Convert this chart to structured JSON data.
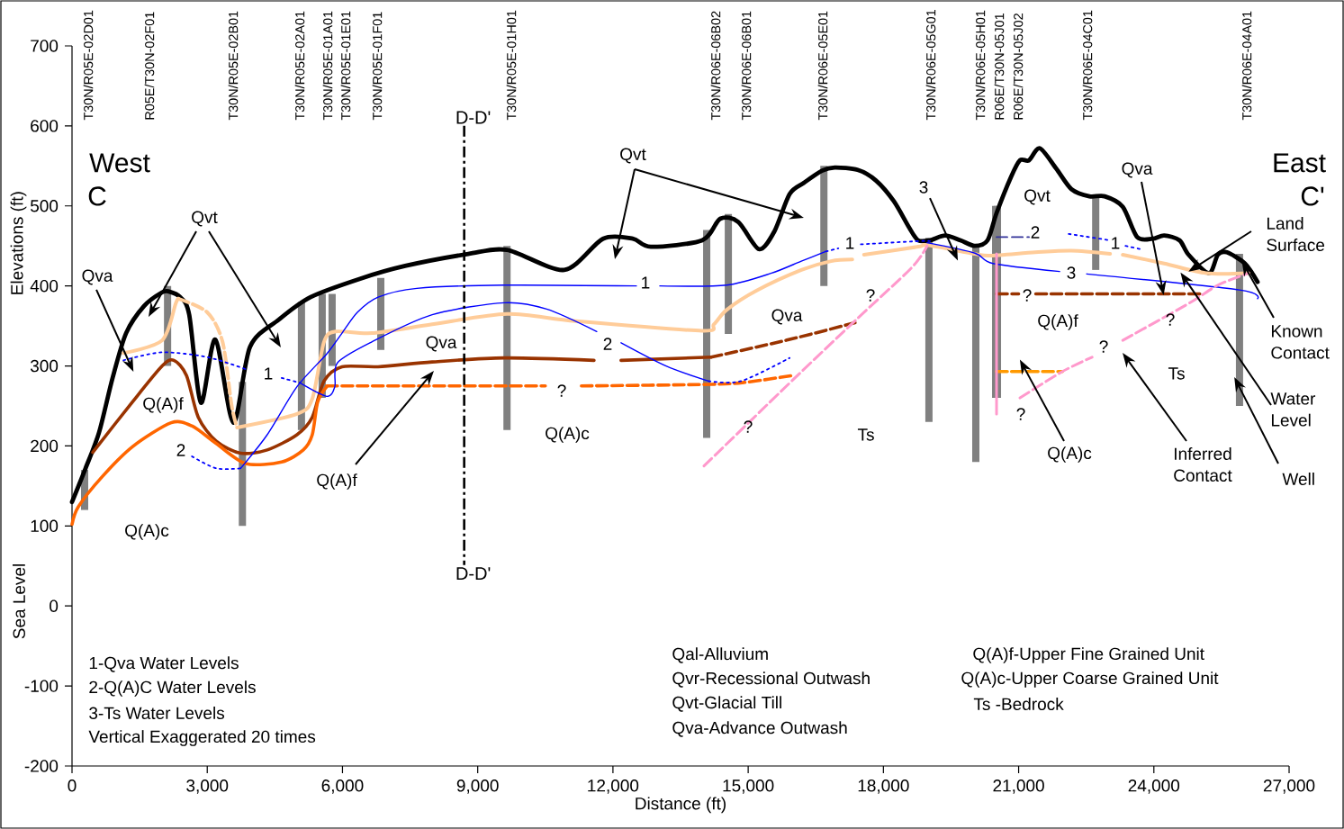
{
  "chart_data": {
    "type": "line",
    "xlabel": "Distance (ft)",
    "ylabel": "Elevations (ft)",
    "xlim": [
      0,
      27000
    ],
    "ylim": [
      -200,
      700
    ],
    "xticks": [
      0,
      {
        "value": 3000,
        "label": "3,000"
      },
      {
        "value": 6000,
        "label": "6,000"
      },
      {
        "value": 9000,
        "label": "9,000"
      },
      {
        "value": 12000,
        "label": "12,000"
      },
      {
        "value": 15000,
        "label": "15,000"
      },
      {
        "value": 18000,
        "label": "18,000"
      },
      {
        "value": 21000,
        "label": "21,000"
      },
      {
        "value": 24000,
        "label": "24,000"
      },
      {
        "value": 27000,
        "label": "27,000"
      }
    ],
    "yticks": [
      -200,
      -100,
      0,
      100,
      200,
      300,
      400,
      500,
      600,
      700
    ],
    "series": [
      {
        "color": "#000000",
        "line_style": "solid",
        "x": [
          0,
          300,
          600,
          900,
          1200,
          1600,
          2000,
          2150,
          2400,
          2600,
          2860,
          3180,
          3580,
          3950,
          4590,
          5290,
          6390,
          7390,
          8790,
          9650,
          10920,
          11780,
          12440,
          12840,
          13980,
          14380,
          14780,
          15240,
          15580,
          15920,
          16240,
          16640,
          16920,
          17430,
          17830,
          18230,
          18570,
          18770,
          19030,
          19370,
          19710,
          20030,
          20310,
          20510,
          20830,
          21030,
          21230,
          21470,
          21830,
          22170,
          22570,
          22910,
          23310,
          23630,
          23970,
          24230,
          24570,
          24770,
          25220,
          25420,
          25620,
          26020,
          26300
        ],
        "values": [
          130,
          172,
          217,
          285,
          341,
          375,
          392,
          393,
          386,
          364,
          254,
          333,
          229,
          324,
          358,
          386,
          409,
          425,
          440,
          445,
          420,
          459,
          459,
          449,
          457,
          484,
          480,
          446,
          468,
          515,
          529,
          544,
          548,
          545,
          532,
          506,
          473,
          457,
          457,
          463,
          457,
          450,
          457,
          491,
          536,
          557,
          557,
          572,
          547,
          521,
          512,
          512,
          499,
          461,
          459,
          463,
          457,
          439,
          416,
          439,
          442,
          428,
          405
        ]
      },
      {
        "color": "#ffcc99",
        "line_style": "solid",
        "x": [
          3660,
          4990,
          5330,
          5590,
          5850,
          6650,
          7990,
          9650,
          11180,
          13980,
          14240,
          14520,
          15180,
          16180,
          16840,
          17310,
          17440,
          17570,
          18770,
          18970,
          20030,
          20370,
          21370,
          22170,
          23030,
          23170,
          23310,
          24230,
          25160,
          26100
        ],
        "values": [
          223,
          240,
          259,
          330,
          343,
          341,
          352,
          365,
          356,
          344,
          352,
          370,
          394,
          420,
          431,
          433,
          null,
          439,
          449,
          451,
          440,
          438,
          442,
          444,
          440,
          null,
          439,
          428,
          416,
          416
        ]
      },
      {
        "color": "#ffcc99",
        "line_style": "dashed",
        "x": [
          2360,
          3000,
          3340,
          3540,
          3660
        ],
        "values": [
          384,
          367,
          330,
          251,
          223
        ]
      },
      {
        "color": "#993300",
        "line_style": "solid",
        "x": [
          460,
          1340,
          2000,
          2260,
          2540,
          2800,
          3200,
          3740,
          4330,
          4990,
          5330,
          5590,
          5990,
          6790,
          7990,
          9590,
          11580,
          11880,
          12180,
          14180
        ],
        "values": [
          192,
          255,
          300,
          307,
          288,
          236,
          206,
          191,
          195,
          214,
          236,
          281,
          299,
          299,
          305,
          310,
          307,
          null,
          307,
          311
        ]
      },
      {
        "color": "#993300",
        "line_style": "dashed",
        "x": [
          14180,
          15840,
          17370,
          19000,
          20510,
          21000,
          21190,
          21380,
          25020
        ],
        "values": [
          311,
          332,
          354,
          null,
          390,
          390,
          null,
          390,
          390
        ]
      },
      {
        "color": "#ff6600",
        "line_style": "solid",
        "x": [
          0,
          140,
          660,
          1340,
          2200,
          2660,
          3200,
          3850,
          4650,
          5130,
          5330,
          5450,
          5650
        ],
        "values": [
          102,
          124,
          161,
          199,
          229,
          225,
          203,
          178,
          180,
          195,
          214,
          255,
          274
        ]
      },
      {
        "color": "#ff6600",
        "line_style": "dashed",
        "x": [
          5650,
          10500,
          10900,
          11300,
          14180,
          15000,
          15980
        ],
        "values": [
          275,
          275,
          null,
          275,
          277,
          280,
          288
        ]
      },
      {
        "color": "#ff9900",
        "line_style": "dashed",
        "x": [
          20510,
          21970
        ],
        "values": [
          293,
          293
        ]
      },
      {
        "color": "#0000ff",
        "line_style": "solid",
        "x": [
          3740,
          4330,
          4990,
          5650,
          5990,
          6330,
          6790,
          7650,
          9590,
          12520,
          12780,
          13040,
          14520,
          15520,
          16180,
          16720
        ],
        "values": [
          172,
          214,
          274,
          315,
          341,
          367,
          386,
          397,
          401,
          400,
          null,
          400,
          401,
          416,
          431,
          443
        ]
      },
      {
        "color": "#0000ff",
        "line_style": "dotted",
        "x": [
          16720,
          17000,
          17250,
          17500,
          18770,
          19030
        ],
        "values": [
          443,
          447,
          null,
          452,
          456,
          456
        ]
      },
      {
        "color": "#0000ff",
        "line_style": "solid",
        "x": [
          18970,
          20030,
          20430,
          21910,
          22170,
          22510,
          25900,
          26300
        ],
        "values": [
          454,
          441,
          428,
          418,
          null,
          415,
          395,
          384
        ]
      },
      {
        "color": "#0000ff",
        "line_style": "dotted",
        "x": [
          1140,
          2000,
          3000,
          3850,
          4350,
          4650,
          5050
        ],
        "values": [
          307,
          317,
          311,
          296,
          null,
          285,
          279
        ]
      },
      {
        "color": "#0000ff",
        "line_style": "dotted",
        "x": [
          2660,
          3200,
          3740
        ],
        "values": [
          187,
          172,
          172
        ]
      },
      {
        "color": "#0000ff",
        "line_style": "solid",
        "x": [
          5050,
          5650,
          5830,
          5890,
          6650,
          7990,
          9590,
          10530,
          11640,
          11880,
          12180,
          13180,
          14120
        ],
        "values": [
          279,
          262,
          274,
          304,
          330,
          364,
          379,
          371,
          343,
          null,
          329,
          300,
          281
        ]
      },
      {
        "color": "#0000ff",
        "line_style": "dotted",
        "x": [
          14120,
          14840,
          15920
        ],
        "values": [
          281,
          281,
          310
        ]
      },
      {
        "color": "#333399",
        "line_style": "dashed",
        "x": [
          20510,
          21230
        ],
        "values": [
          461,
          461
        ]
      },
      {
        "color": "#0000ff",
        "line_style": "dotted",
        "x": [
          22110,
          23030,
          23200,
          23370,
          23710
        ],
        "values": [
          465,
          457,
          null,
          450,
          446
        ]
      },
      {
        "color": "#ff99cc",
        "line_style": "dashed",
        "x": [
          14020,
          16000,
          17400,
          18630,
          18970
        ],
        "values": [
          175,
          283,
          358,
          423,
          450
        ]
      },
      {
        "color": "#ff99cc",
        "line_style": "solid",
        "x": [
          20510,
          20510
        ],
        "values": [
          440,
          240
        ]
      },
      {
        "color": "#ff99cc",
        "line_style": "dashed",
        "x": [
          21030,
          21970,
          22630,
          22950,
          23310,
          24770,
          25420,
          26100
        ],
        "values": [
          260,
          293,
          311,
          null,
          332,
          378,
          401,
          416
        ]
      },
      {
        "color": "#ffcc99",
        "line_style": "solid",
        "x": [
          1140,
          2000,
          2300,
          2360
        ],
        "values": [
          316,
          332,
          378,
          384
        ]
      },
      {
        "type": "bar",
        "color": "#808080",
        "x": [
          280,
          2120,
          3780,
          5090,
          5550,
          5770,
          6850,
          9650,
          14080,
          14560,
          16680,
          19010,
          20050,
          20490,
          20530,
          22710,
          25900
        ],
        "base": [
          120,
          300,
          100,
          220,
          260,
          300,
          320,
          220,
          210,
          340,
          400,
          230,
          180,
          260,
          260,
          420,
          250
        ],
        "values": [
          50,
          100,
          180,
          160,
          130,
          90,
          90,
          230,
          260,
          150,
          150,
          230,
          270,
          240,
          240,
          90,
          190
        ]
      }
    ],
    "ref_lines": [
      {
        "axis": "x",
        "value": 8700,
        "label": "D-D'",
        "color": "#000000",
        "line_style": "dashdot"
      }
    ],
    "annotations": [
      "T30N/R05E-02D01",
      "R05E/T30N-02F01",
      "T30N/R05E-02B01",
      "T30N/R05E-02A01",
      "T30N/R05E-01A01",
      "T30N/R05E-01E01",
      "T30N/R05E-01F01",
      "T30N/R05E-01H01",
      "T30N/R06E-06B02",
      "T30N/R06E-06B01",
      "T30N/R06E-05E01",
      "T30N/R06E-05G01",
      "T30N/R06E-05H01",
      "R06E/T30N-05J01",
      "R06E/T30N-05J02",
      "T30N/R06E-04C01",
      "T30N/R06E-04A01",
      "West",
      "C",
      "East",
      "C'",
      "Qvt",
      {
        "text": "Qva",
        "x": 1240,
        "y": 308
      },
      "Q(A)f",
      "Q(A)c",
      "Q(A)f",
      "Qva",
      "Qvt",
      "Q(A)c",
      "Qva",
      "Ts",
      "Qvt",
      {
        "text": "Qva",
        "x": 24160,
        "y": 405
      },
      "Q(A)f",
      "Ts",
      {
        "text": "Q(A)c",
        "x": 21170,
        "y": 293
      },
      "?",
      "?",
      "?",
      "?",
      "?",
      "?",
      "?",
      "1",
      "2",
      "1",
      "2",
      "1",
      {
        "text": "3",
        "x": 19530,
        "y": 447
      },
      "2",
      "1",
      "3",
      {
        "text": "Land Surface",
        "x": 25020,
        "y": 427
      },
      {
        "text": "Known Contact",
        "x": 26100,
        "y": 416
      },
      {
        "text": "Water Level",
        "x": 24760,
        "y": 403
      },
      "Inferred Contact",
      {
        "text": "Well",
        "x": 25920,
        "y": 271
      },
      "1-Qva Water Levels",
      "2-Q(A)C Water Levels",
      "3-Ts Water Levels",
      "Vertical Exaggerated 20 times",
      "Qal-Alluvium",
      "Qvr-Recessional Outwash",
      "Qvt-Glacial Till",
      "Qva-Advance Outwash",
      "Q(A)f-Upper Fine Grained Unit",
      "Q(A)c-Upper Coarse Grained Unit",
      "Ts -Bedrock",
      "Sea Level"
    ]
  }
}
